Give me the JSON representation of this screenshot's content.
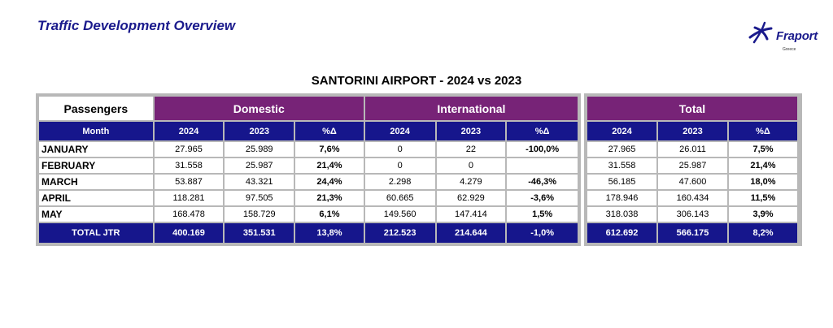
{
  "header": {
    "title": "Traffic Development Overview",
    "logo_text": "Fraport",
    "logo_sub": "Greece"
  },
  "table": {
    "title": "SANTORINI AIRPORT - 2024 vs 2023",
    "corner": "Passengers",
    "groups": {
      "domestic": "Domestic",
      "international": "International",
      "total": "Total"
    },
    "month_label": "Month",
    "year_a": "2024",
    "year_b": "2023",
    "pct_label": "%Δ",
    "rows": [
      {
        "month": "JANUARY",
        "dom": [
          "27.965",
          "25.989",
          "7,6%"
        ],
        "int": [
          "0",
          "22",
          "-100,0%"
        ],
        "tot": [
          "27.965",
          "26.011",
          "7,5%"
        ]
      },
      {
        "month": "FEBRUARY",
        "dom": [
          "31.558",
          "25.987",
          "21,4%"
        ],
        "int": [
          "0",
          "0",
          ""
        ],
        "tot": [
          "31.558",
          "25.987",
          "21,4%"
        ]
      },
      {
        "month": "MARCH",
        "dom": [
          "53.887",
          "43.321",
          "24,4%"
        ],
        "int": [
          "2.298",
          "4.279",
          "-46,3%"
        ],
        "tot": [
          "56.185",
          "47.600",
          "18,0%"
        ]
      },
      {
        "month": "APRIL",
        "dom": [
          "118.281",
          "97.505",
          "21,3%"
        ],
        "int": [
          "60.665",
          "62.929",
          "-3,6%"
        ],
        "tot": [
          "178.946",
          "160.434",
          "11,5%"
        ]
      },
      {
        "month": "MAY",
        "dom": [
          "168.478",
          "158.729",
          "6,1%"
        ],
        "int": [
          "149.560",
          "147.414",
          "1,5%"
        ],
        "tot": [
          "318.038",
          "306.143",
          "3,9%"
        ]
      }
    ],
    "total": {
      "label": "TOTAL JTR",
      "dom": [
        "400.169",
        "351.531",
        "13,8%"
      ],
      "int": [
        "212.523",
        "214.644",
        "-1,0%"
      ],
      "tot": [
        "612.692",
        "566.175",
        "8,2%"
      ]
    }
  },
  "colors": {
    "purple": "#772377",
    "navy": "#16168c",
    "title_blue": "#1a1a8c",
    "border_gray": "#b8b8b8"
  }
}
